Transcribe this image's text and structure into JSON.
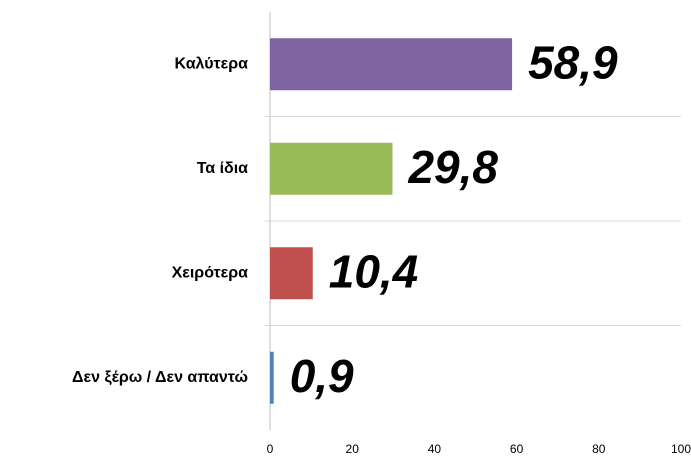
{
  "chart_data": {
    "type": "barh",
    "categories": [
      "Καλύτερα",
      "Τα ίδια",
      "Χειρότερα",
      "Δεν ξέρω / Δεν απαντώ"
    ],
    "values": [
      58.9,
      29.8,
      10.4,
      0.9
    ],
    "value_labels": [
      "58,9",
      "29,8",
      "10,4",
      "0,9"
    ],
    "colors": [
      "#8064a2",
      "#9bbb59",
      "#c0504d",
      "#4f81bd"
    ],
    "xlim": [
      0,
      100
    ],
    "xticks": [
      0,
      20,
      40,
      60,
      80,
      100
    ]
  }
}
